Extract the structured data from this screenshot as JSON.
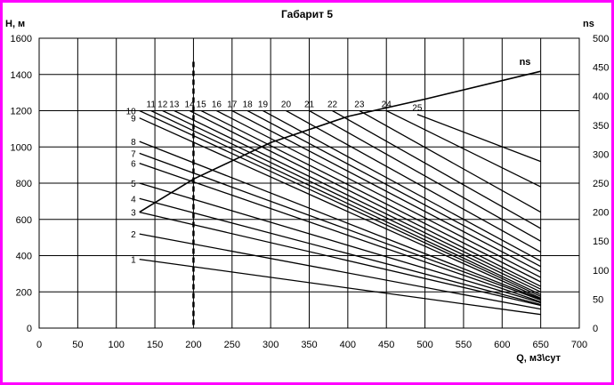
{
  "chart_data": {
    "type": "line",
    "title": "Габарит 5",
    "xlabel": "Q, м3\\сут",
    "ylabel": "Н, м",
    "y2label": "ns",
    "xlim": [
      0,
      700
    ],
    "ylim": [
      0,
      1600
    ],
    "y2lim": [
      0,
      500
    ],
    "xticks": [
      0,
      50,
      100,
      150,
      200,
      250,
      300,
      350,
      400,
      450,
      500,
      550,
      600,
      650,
      700
    ],
    "yticks": [
      0,
      200,
      400,
      600,
      800,
      1000,
      1200,
      1400,
      1600
    ],
    "y2ticks": [
      0,
      50,
      100,
      150,
      200,
      250,
      300,
      350,
      400,
      450,
      500
    ],
    "grid": true,
    "vline": {
      "x": 200,
      "style": "dashed"
    },
    "series": [
      {
        "name": "1",
        "x": [
          130,
          650
        ],
        "y": [
          380,
          75
        ]
      },
      {
        "name": "2",
        "x": [
          130,
          650
        ],
        "y": [
          520,
          105
        ]
      },
      {
        "name": "3",
        "x": [
          130,
          650
        ],
        "y": [
          640,
          125
        ]
      },
      {
        "name": "4",
        "x": [
          130,
          650
        ],
        "y": [
          715,
          130
        ]
      },
      {
        "name": "5",
        "x": [
          130,
          650
        ],
        "y": [
          800,
          140
        ]
      },
      {
        "name": "6",
        "x": [
          130,
          650
        ],
        "y": [
          910,
          145
        ]
      },
      {
        "name": "7",
        "x": [
          130,
          650
        ],
        "y": [
          965,
          155
        ]
      },
      {
        "name": "8",
        "x": [
          130,
          650
        ],
        "y": [
          1030,
          160
        ]
      },
      {
        "name": "9",
        "x": [
          130,
          650
        ],
        "y": [
          1160,
          165
        ]
      },
      {
        "name": "10",
        "x": [
          130,
          650
        ],
        "y": [
          1200,
          175
        ]
      },
      {
        "name": "11",
        "x": [
          145,
          650
        ],
        "y": [
          1200,
          185
        ]
      },
      {
        "name": "12",
        "x": [
          160,
          650
        ],
        "y": [
          1200,
          200
        ]
      },
      {
        "name": "13",
        "x": [
          175,
          650
        ],
        "y": [
          1200,
          215
        ]
      },
      {
        "name": "14",
        "x": [
          195,
          650
        ],
        "y": [
          1200,
          230
        ]
      },
      {
        "name": "15",
        "x": [
          210,
          650
        ],
        "y": [
          1200,
          255
        ]
      },
      {
        "name": "16",
        "x": [
          230,
          650
        ],
        "y": [
          1200,
          280
        ]
      },
      {
        "name": "17",
        "x": [
          250,
          650
        ],
        "y": [
          1200,
          310
        ]
      },
      {
        "name": "18",
        "x": [
          270,
          650
        ],
        "y": [
          1200,
          340
        ]
      },
      {
        "name": "19",
        "x": [
          290,
          650
        ],
        "y": [
          1200,
          370
        ]
      },
      {
        "name": "20",
        "x": [
          320,
          650
        ],
        "y": [
          1200,
          420
        ]
      },
      {
        "name": "21",
        "x": [
          350,
          650
        ],
        "y": [
          1200,
          480
        ]
      },
      {
        "name": "22",
        "x": [
          380,
          650
        ],
        "y": [
          1200,
          550
        ]
      },
      {
        "name": "23",
        "x": [
          415,
          650
        ],
        "y": [
          1200,
          640
        ]
      },
      {
        "name": "24",
        "x": [
          450,
          650
        ],
        "y": [
          1200,
          780
        ]
      },
      {
        "name": "25",
        "x": [
          490,
          650
        ],
        "y": [
          1180,
          920
        ]
      }
    ],
    "ns_series": {
      "name": "ns",
      "x": [
        130,
        200,
        300,
        400,
        500,
        650
      ],
      "y": [
        200,
        257,
        320,
        365,
        395,
        443
      ]
    },
    "ns_label": "ns"
  }
}
